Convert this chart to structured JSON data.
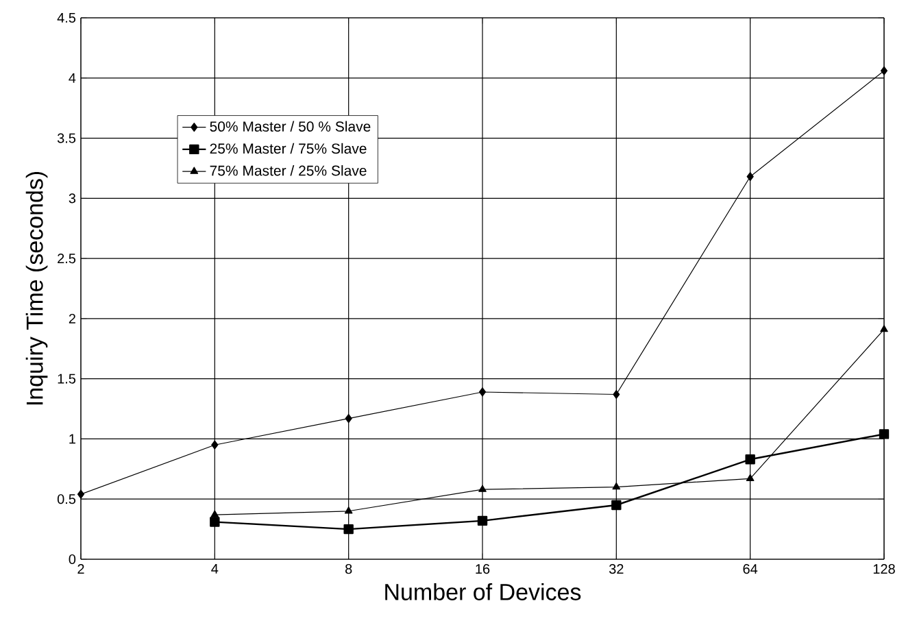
{
  "chart_data": {
    "type": "line",
    "xlabel": "Number of Devices",
    "ylabel": "Inquiry Time (seconds)",
    "categories": [
      "2",
      "4",
      "8",
      "16",
      "32",
      "64",
      "128"
    ],
    "series": [
      {
        "name": "50% Master / 50 % Slave",
        "color": "#000000",
        "marker": "diamond",
        "values": [
          0.54,
          0.95,
          1.17,
          1.39,
          1.37,
          3.18,
          4.06
        ]
      },
      {
        "name": "25% Master / 75% Slave",
        "color": "#000000",
        "marker": "square",
        "values": [
          null,
          0.31,
          0.25,
          0.32,
          0.45,
          0.83,
          1.04
        ]
      },
      {
        "name": "75% Master / 25% Slave",
        "color": "#000000",
        "marker": "triangle",
        "values": [
          null,
          0.37,
          0.4,
          0.58,
          0.6,
          0.67,
          1.91
        ]
      }
    ],
    "ylim": [
      0,
      4.5
    ],
    "yticks": [
      0,
      0.5,
      1,
      1.5,
      2,
      2.5,
      3,
      3.5,
      4,
      4.5
    ],
    "grid": true,
    "legend": "top left",
    "line_style": "solid"
  }
}
